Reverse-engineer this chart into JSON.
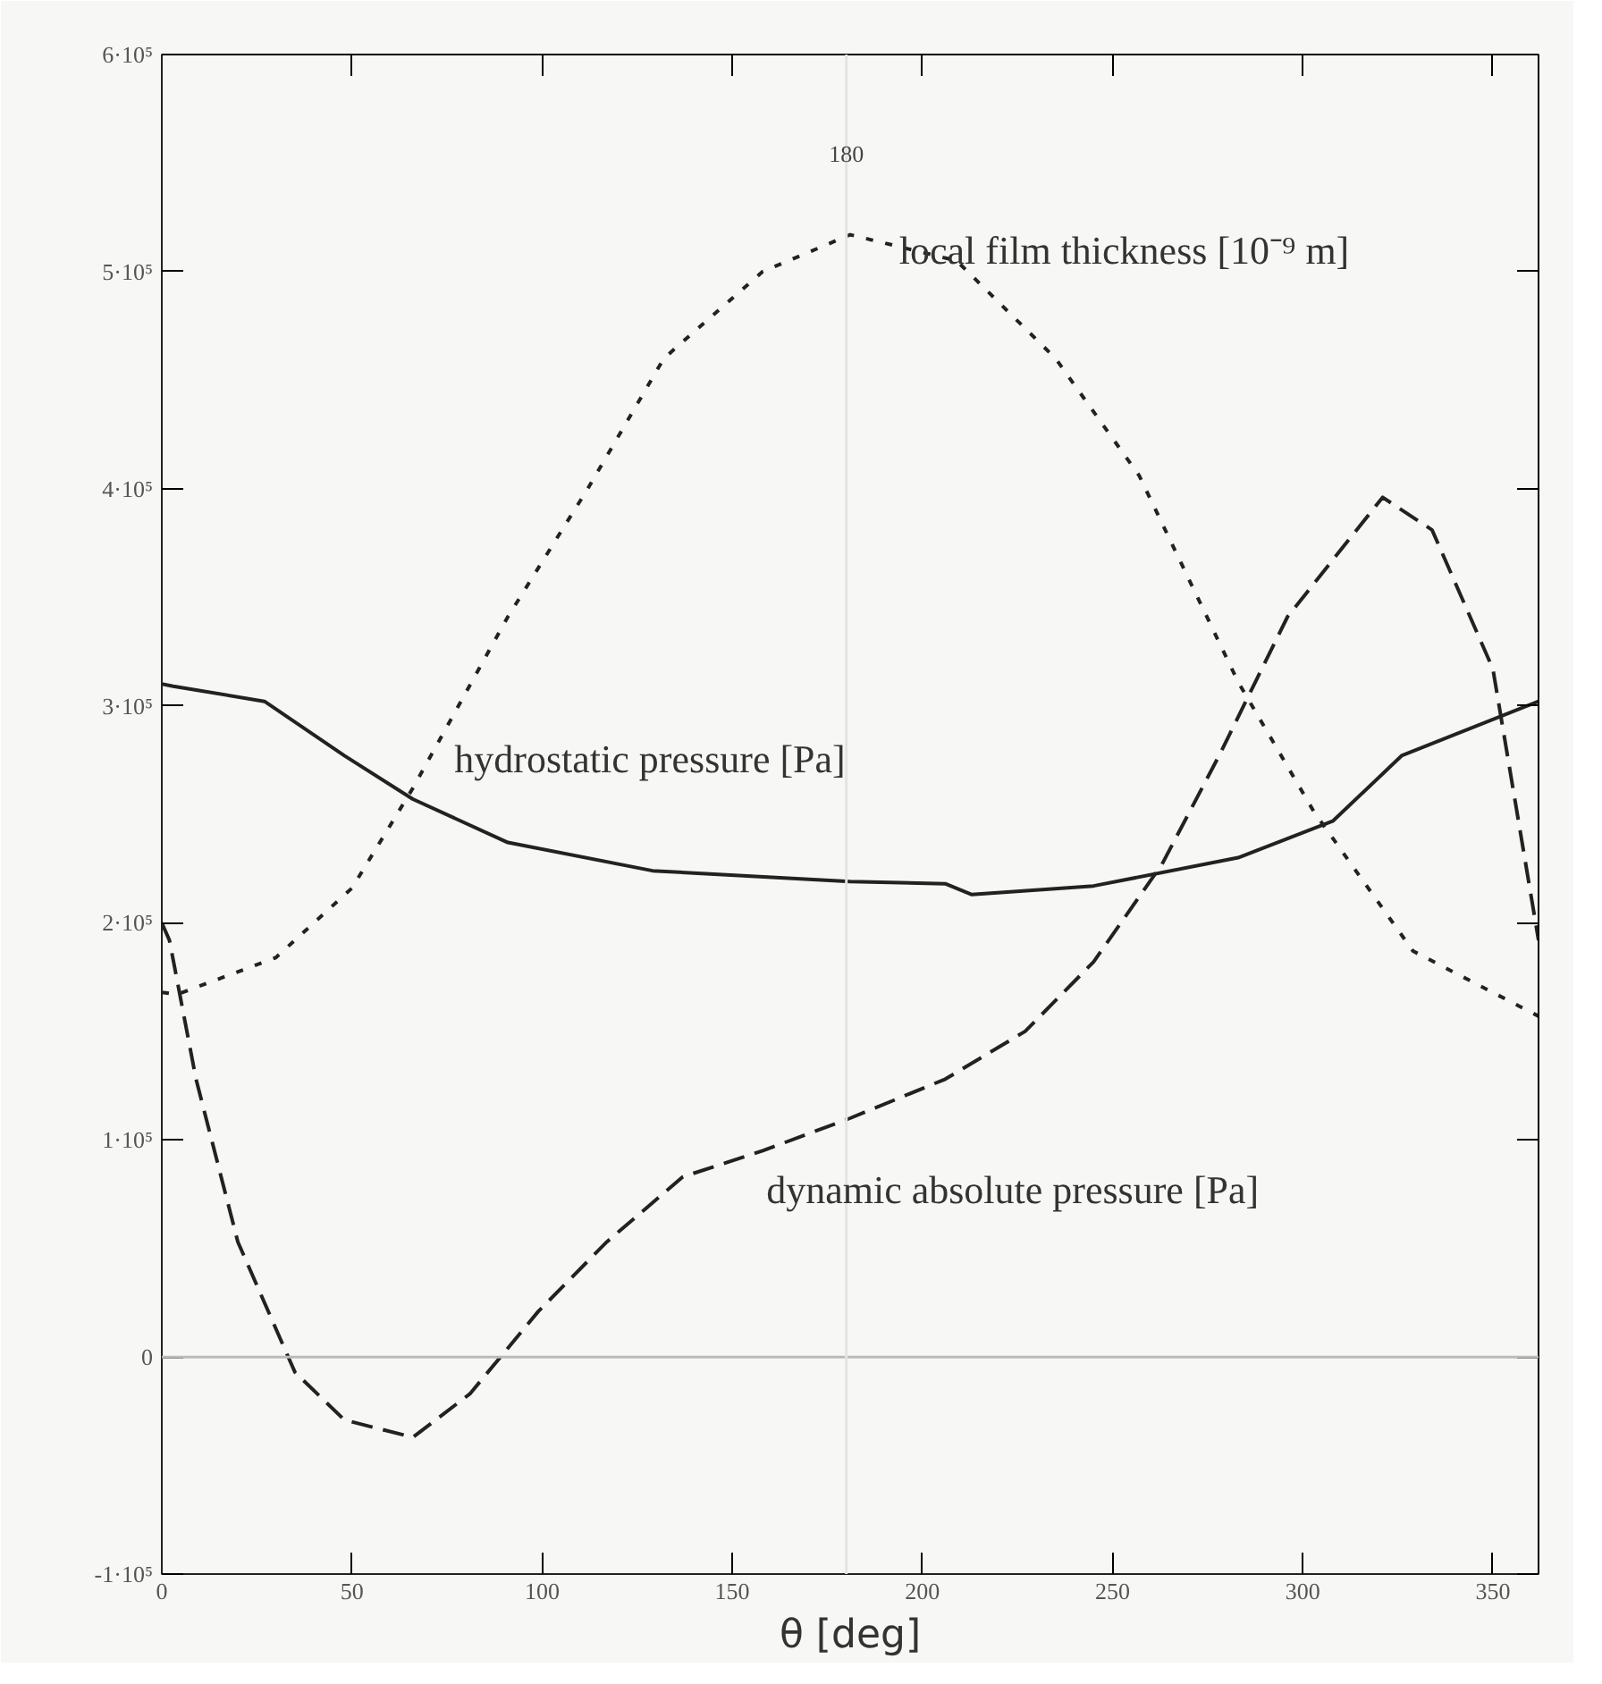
{
  "chart_data": {
    "type": "line",
    "xlabel": "θ [deg]",
    "xlim": [
      0,
      362
    ],
    "xticks": [
      0,
      50,
      100,
      150,
      200,
      250,
      300,
      350
    ],
    "ylim": [
      -100000,
      600000
    ],
    "yticks": [
      {
        "value": -100000,
        "label": "-1·10⁵"
      },
      {
        "value": 0,
        "label": "0"
      },
      {
        "value": 100000,
        "label": "1·10⁵"
      },
      {
        "value": 200000,
        "label": "2·10⁵"
      },
      {
        "value": 300000,
        "label": "3·10⁵"
      },
      {
        "value": 400000,
        "label": "4·10⁵"
      },
      {
        "value": 500000,
        "label": "5·10⁵"
      },
      {
        "value": 600000,
        "label": "6·10⁵"
      }
    ],
    "grid": false,
    "marker": "none",
    "series": [
      {
        "color": "#222222",
        "line_style": "dotted",
        "x": [
          0,
          4,
          30,
          50,
          66,
          91,
          112,
          132,
          158,
          181,
          209,
          235,
          257,
          283,
          303,
          329,
          362
        ],
        "values": [
          168000,
          167000,
          184000,
          216000,
          262000,
          341000,
          400000,
          460000,
          500000,
          517000,
          505000,
          460000,
          406000,
          311000,
          251000,
          187000,
          157000
        ]
      },
      {
        "color": "#222222",
        "line_style": "solid",
        "x": [
          0,
          3,
          27,
          48,
          66,
          91,
          129,
          181,
          206,
          213,
          245,
          283,
          308,
          326,
          362
        ],
        "values": [
          310000,
          309000,
          302000,
          277000,
          257000,
          237000,
          224000,
          219000,
          218000,
          213000,
          217000,
          230000,
          247000,
          277000,
          302000
        ]
      },
      {
        "color": "#222222",
        "line_style": "dashed",
        "x": [
          0,
          2,
          9,
          20,
          35,
          48,
          66,
          81,
          99,
          117,
          137,
          158,
          181,
          206,
          227,
          245,
          263,
          278,
          296,
          321,
          334,
          350,
          362
        ],
        "values": [
          200000,
          192000,
          128000,
          53000,
          -7000,
          -29000,
          -37000,
          -17000,
          21000,
          53000,
          83000,
          95000,
          110000,
          128000,
          150000,
          182000,
          227000,
          277000,
          341000,
          396000,
          381000,
          317000,
          192000
        ]
      }
    ],
    "ref_lines": [
      {
        "axis": "y",
        "value": 0,
        "color": "#bbbbbb"
      },
      {
        "axis": "x",
        "value": 180,
        "label": "180",
        "color": "#e4e4e4"
      }
    ],
    "annotations": [
      {
        "text": "local film thickness [10⁻⁹ m]",
        "x": 192,
        "y": 510000
      },
      {
        "text": "hydrostatic pressure [Pa]",
        "x": 76,
        "y": 249000
      },
      {
        "text": "dynamic absolute pressure [Pa]",
        "x": 158,
        "y": 95000
      }
    ]
  }
}
